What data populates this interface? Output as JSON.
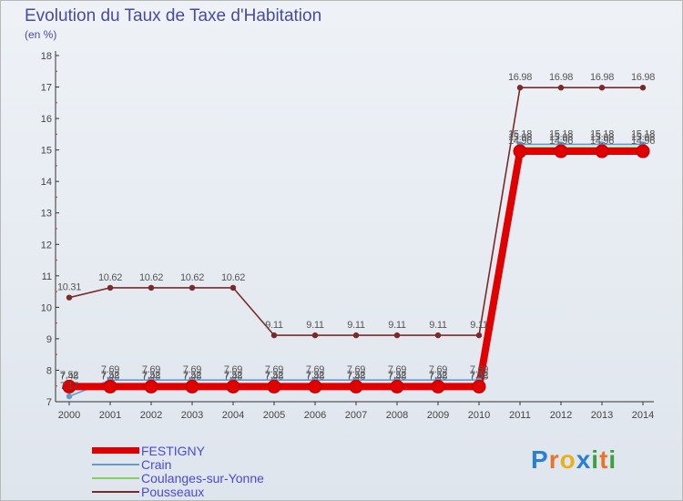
{
  "header": {
    "title": "Evolution du Taux de Taxe d'Habitation",
    "subtitle": "(en %)"
  },
  "chart_data": {
    "type": "line",
    "title": "Evolution du Taux de Taxe d'Habitation",
    "ylabel": "(en %)",
    "xlabel": "",
    "ylim": [
      7,
      18
    ],
    "yticks": [
      "7",
      "8",
      "9",
      "10",
      "11",
      "12",
      "13",
      "14",
      "15",
      "16",
      "17",
      "18"
    ],
    "x": [
      "2000",
      "2001",
      "2002",
      "2003",
      "2004",
      "2005",
      "2006",
      "2007",
      "2008",
      "2009",
      "2010",
      "2011",
      "2012",
      "2013",
      "2014"
    ],
    "legend_position": "bottom-left",
    "series": [
      {
        "name": "FESTIGNY",
        "color": "#e00000",
        "values": [
          7.48,
          7.48,
          7.48,
          7.48,
          7.48,
          7.48,
          7.48,
          7.48,
          7.48,
          7.48,
          7.48,
          14.96,
          14.96,
          14.96,
          14.96
        ],
        "labels": [
          "7.48",
          "7.48",
          "7.48",
          "7.48",
          "7.48",
          "7.48",
          "7.48",
          "7.48",
          "7.48",
          "7.48",
          "7.48",
          "14.96",
          "14.96",
          "14.96",
          "14.96"
        ]
      },
      {
        "name": "Crain",
        "color": "#6699cc",
        "values": [
          7.17,
          7.69,
          7.69,
          7.69,
          7.69,
          7.69,
          7.69,
          7.69,
          7.69,
          7.69,
          7.69,
          15.18,
          15.18,
          15.18,
          15.18
        ],
        "labels": [
          "7.17",
          "7.69",
          "7.69",
          "7.69",
          "7.69",
          "7.69",
          "7.69",
          "7.69",
          "7.69",
          "7.69",
          "7.69",
          "15.18",
          "15.18",
          "15.18",
          "15.18"
        ]
      },
      {
        "name": "Coulanges-sur-Yonne",
        "color": "#88cc66",
        "values": [
          7.52,
          7.52,
          7.52,
          7.52,
          7.52,
          7.52,
          7.52,
          7.52,
          7.52,
          7.52,
          7.52,
          15.08,
          15.08,
          15.08,
          15.08
        ],
        "labels": [
          "7.52",
          "7.52",
          "7.52",
          "7.52",
          "7.52",
          "7.52",
          "7.52",
          "7.52",
          "7.52",
          "7.52",
          "7.52",
          "15.08",
          "15.08",
          "15.08",
          "15.08"
        ]
      },
      {
        "name": "Pousseaux",
        "color": "#7a2a2a",
        "values": [
          10.31,
          10.62,
          10.62,
          10.62,
          10.62,
          9.11,
          9.11,
          9.11,
          9.11,
          9.11,
          9.11,
          16.98,
          16.98,
          16.98,
          16.98
        ],
        "labels": [
          "10.31",
          "10.62",
          "10.62",
          "10.62",
          "10.62",
          "9.11",
          "9.11",
          "9.11",
          "9.11",
          "9.11",
          "9.11",
          "16.98",
          "16.98",
          "16.98",
          "16.98"
        ]
      }
    ]
  },
  "brand": {
    "letters": [
      "P",
      "r",
      "o",
      "x",
      "i",
      "t",
      "i"
    ],
    "colors": [
      "#2a7fd0",
      "#e8742a",
      "#e8b020",
      "#2a7fd0",
      "#3aa040",
      "#e8742a",
      "#3aa040"
    ]
  }
}
